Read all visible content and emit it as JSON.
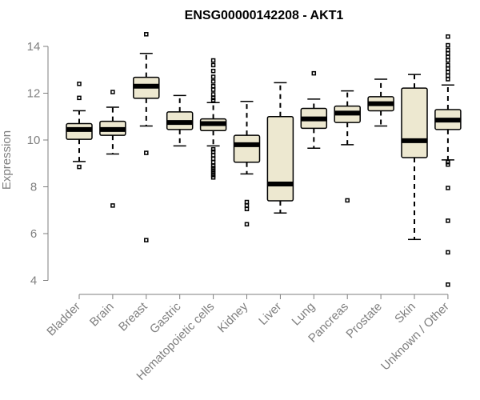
{
  "chart_data": {
    "type": "box",
    "title": "ENSG00000142208 - AKT1",
    "xlabel": "",
    "ylabel": "Expression",
    "ylim": [
      3.5,
      14.5
    ],
    "yticks": [
      4,
      6,
      8,
      10,
      12,
      14
    ],
    "box_fill": "#ede8d0",
    "line_color": "#000000",
    "tick_color": "#7f7f7f",
    "categories": [
      "Bladder",
      "Brain",
      "Breast",
      "Gastric",
      "Hematopoietic cells",
      "Kidney",
      "Liver",
      "Lung",
      "Pancreas",
      "Prostate",
      "Skin",
      "Unknown / Other"
    ],
    "boxes": [
      {
        "q1": 10.03,
        "median": 10.45,
        "q3": 10.7,
        "whisker_low": 9.08,
        "whisker_high": 11.25,
        "outliers": [
          12.4,
          11.8,
          8.85
        ]
      },
      {
        "q1": 10.2,
        "median": 10.45,
        "q3": 10.8,
        "whisker_low": 9.4,
        "whisker_high": 11.4,
        "outliers": [
          12.05,
          7.2
        ]
      },
      {
        "q1": 11.78,
        "median": 12.3,
        "q3": 12.68,
        "whisker_low": 10.6,
        "whisker_high": 13.7,
        "outliers": [
          14.52,
          9.45,
          5.72
        ]
      },
      {
        "q1": 10.45,
        "median": 10.75,
        "q3": 11.2,
        "whisker_low": 9.75,
        "whisker_high": 11.9,
        "outliers": []
      },
      {
        "q1": 10.4,
        "median": 10.7,
        "q3": 10.9,
        "whisker_low": 9.75,
        "whisker_high": 11.6,
        "outliers": [
          13.4,
          13.2,
          12.95,
          12.7,
          12.5,
          12.3,
          12.15,
          11.95,
          11.8,
          11.7,
          9.6,
          9.5,
          9.35,
          9.2,
          9.05,
          8.9,
          8.8,
          8.7,
          8.6,
          8.5,
          8.4
        ]
      },
      {
        "q1": 9.05,
        "median": 9.8,
        "q3": 10.2,
        "whisker_low": 8.55,
        "whisker_high": 11.65,
        "outliers": [
          7.35,
          7.2,
          7.05,
          6.4
        ]
      },
      {
        "q1": 7.4,
        "median": 8.12,
        "q3": 11.0,
        "whisker_low": 6.88,
        "whisker_high": 12.45,
        "outliers": []
      },
      {
        "q1": 10.5,
        "median": 10.9,
        "q3": 11.35,
        "whisker_low": 9.65,
        "whisker_high": 11.75,
        "outliers": [
          12.85
        ]
      },
      {
        "q1": 10.75,
        "median": 11.15,
        "q3": 11.45,
        "whisker_low": 9.8,
        "whisker_high": 12.1,
        "outliers": [
          7.42
        ]
      },
      {
        "q1": 11.25,
        "median": 11.55,
        "q3": 11.85,
        "whisker_low": 10.6,
        "whisker_high": 12.6,
        "outliers": []
      },
      {
        "q1": 9.25,
        "median": 9.97,
        "q3": 12.22,
        "whisker_low": 5.75,
        "whisker_high": 12.8,
        "outliers": []
      },
      {
        "q1": 10.45,
        "median": 10.85,
        "q3": 11.3,
        "whisker_low": 9.15,
        "whisker_high": 12.35,
        "outliers": [
          14.42,
          14.05,
          13.85,
          13.7,
          13.55,
          13.4,
          13.2,
          13.05,
          12.9,
          12.75,
          12.6,
          9.05,
          8.95,
          7.95,
          6.55,
          5.2,
          3.82
        ]
      }
    ]
  }
}
